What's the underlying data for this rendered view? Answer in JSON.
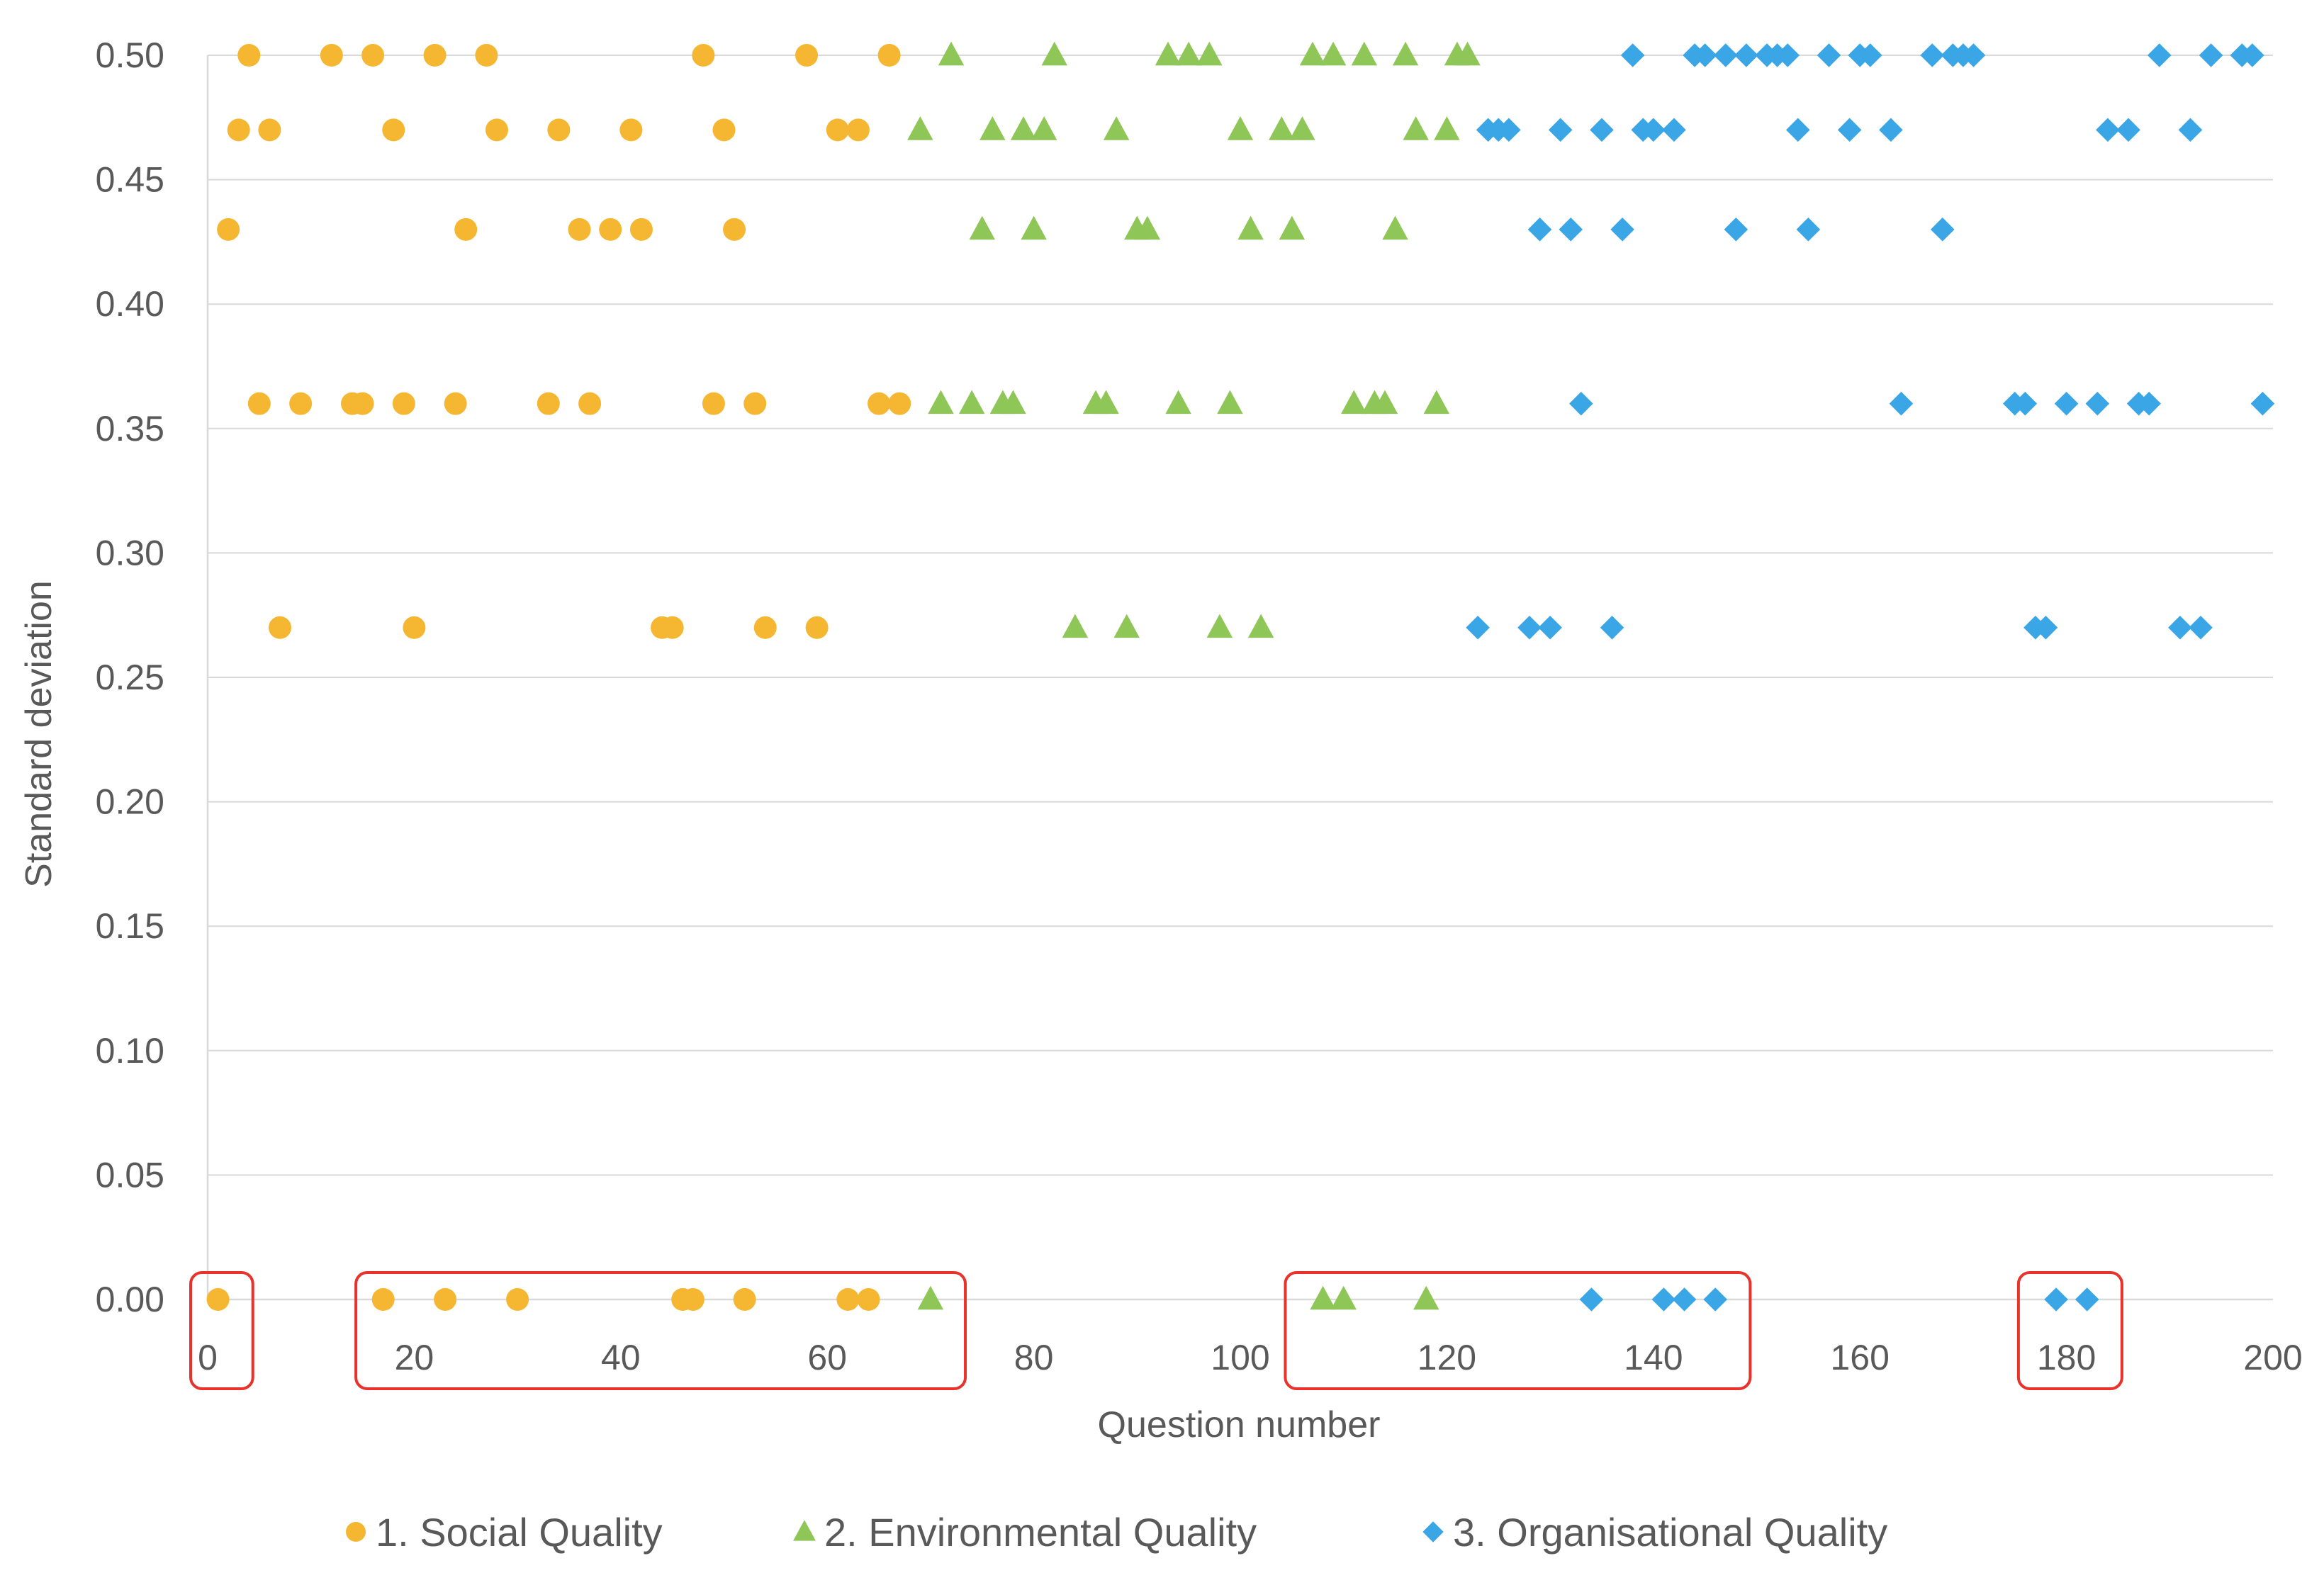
{
  "chart_data": {
    "type": "scatter",
    "title": "",
    "xlabel": "Question number",
    "ylabel": "Standard deviation",
    "xlim": [
      0,
      200
    ],
    "ylim": [
      0,
      0.5
    ],
    "x_ticks": [
      0,
      20,
      40,
      60,
      80,
      100,
      120,
      140,
      160,
      180,
      200
    ],
    "y_ticks": [
      "0.00",
      "0.05",
      "0.10",
      "0.15",
      "0.20",
      "0.25",
      "0.30",
      "0.35",
      "0.40",
      "0.45",
      "0.50"
    ],
    "grid": true,
    "legend_position": "bottom",
    "series": [
      {
        "name": "1. Social Quality",
        "marker": "circle",
        "color": "#f5b731",
        "points": [
          [
            1,
            0
          ],
          [
            2,
            0.43
          ],
          [
            3,
            0.47
          ],
          [
            4,
            0.5
          ],
          [
            5,
            0.36
          ],
          [
            6,
            0.47
          ],
          [
            7,
            0.27
          ],
          [
            9,
            0.36
          ],
          [
            12,
            0.5
          ],
          [
            14,
            0.36
          ],
          [
            15,
            0.36
          ],
          [
            16,
            0.5
          ],
          [
            17,
            0
          ],
          [
            18,
            0.47
          ],
          [
            19,
            0.36
          ],
          [
            20,
            0.27
          ],
          [
            22,
            0.5
          ],
          [
            23,
            0
          ],
          [
            24,
            0.36
          ],
          [
            25,
            0.43
          ],
          [
            27,
            0.5
          ],
          [
            28,
            0.47
          ],
          [
            30,
            0
          ],
          [
            33,
            0.36
          ],
          [
            34,
            0.47
          ],
          [
            36,
            0.43
          ],
          [
            37,
            0.36
          ],
          [
            39,
            0.43
          ],
          [
            41,
            0.47
          ],
          [
            42,
            0.43
          ],
          [
            44,
            0.27
          ],
          [
            45,
            0.27
          ],
          [
            46,
            0
          ],
          [
            47,
            0
          ],
          [
            48,
            0.5
          ],
          [
            49,
            0.36
          ],
          [
            50,
            0.47
          ],
          [
            51,
            0.43
          ],
          [
            52,
            0
          ],
          [
            53,
            0.36
          ],
          [
            54,
            0.27
          ],
          [
            58,
            0.5
          ],
          [
            59,
            0.27
          ],
          [
            61,
            0.47
          ],
          [
            62,
            0
          ],
          [
            63,
            0.47
          ],
          [
            64,
            0
          ],
          [
            65,
            0.36
          ],
          [
            66,
            0.5
          ],
          [
            67,
            0.36
          ]
        ]
      },
      {
        "name": "2. Environmental Quality",
        "marker": "triangle",
        "color": "#8fc658",
        "points": [
          [
            69,
            0.47
          ],
          [
            70,
            0
          ],
          [
            71,
            0.36
          ],
          [
            72,
            0.5
          ],
          [
            74,
            0.36
          ],
          [
            75,
            0.43
          ],
          [
            76,
            0.47
          ],
          [
            77,
            0.36
          ],
          [
            78,
            0.36
          ],
          [
            79,
            0.47
          ],
          [
            80,
            0.43
          ],
          [
            81,
            0.47
          ],
          [
            82,
            0.5
          ],
          [
            84,
            0.27
          ],
          [
            86,
            0.36
          ],
          [
            87,
            0.36
          ],
          [
            88,
            0.47
          ],
          [
            89,
            0.27
          ],
          [
            90,
            0.43
          ],
          [
            91,
            0.43
          ],
          [
            93,
            0.5
          ],
          [
            94,
            0.36
          ],
          [
            95,
            0.5
          ],
          [
            97,
            0.5
          ],
          [
            98,
            0.27
          ],
          [
            99,
            0.36
          ],
          [
            100,
            0.47
          ],
          [
            101,
            0.43
          ],
          [
            102,
            0.27
          ],
          [
            104,
            0.47
          ],
          [
            105,
            0.43
          ],
          [
            106,
            0.47
          ],
          [
            107,
            0.5
          ],
          [
            108,
            0
          ],
          [
            109,
            0.5
          ],
          [
            110,
            0
          ],
          [
            111,
            0.36
          ],
          [
            112,
            0.5
          ],
          [
            113,
            0.36
          ],
          [
            114,
            0.36
          ],
          [
            115,
            0.43
          ],
          [
            116,
            0.5
          ],
          [
            117,
            0.47
          ],
          [
            118,
            0
          ],
          [
            119,
            0.36
          ],
          [
            120,
            0.47
          ],
          [
            121,
            0.5
          ],
          [
            122,
            0.5
          ]
        ]
      },
      {
        "name": "3. Organisational Quality",
        "marker": "diamond",
        "color": "#3ba6e6",
        "points": [
          [
            123,
            0.27
          ],
          [
            124,
            0.47
          ],
          [
            125,
            0.47
          ],
          [
            126,
            0.47
          ],
          [
            128,
            0.27
          ],
          [
            129,
            0.43
          ],
          [
            130,
            0.27
          ],
          [
            131,
            0.47
          ],
          [
            132,
            0.43
          ],
          [
            133,
            0.36
          ],
          [
            134,
            0
          ],
          [
            135,
            0.47
          ],
          [
            136,
            0.27
          ],
          [
            137,
            0.43
          ],
          [
            138,
            0.5
          ],
          [
            139,
            0.47
          ],
          [
            140,
            0.47
          ],
          [
            141,
            0
          ],
          [
            142,
            0.47
          ],
          [
            143,
            0
          ],
          [
            144,
            0.5
          ],
          [
            145,
            0.5
          ],
          [
            146,
            0
          ],
          [
            147,
            0.5
          ],
          [
            148,
            0.43
          ],
          [
            149,
            0.5
          ],
          [
            151,
            0.5
          ],
          [
            152,
            0.5
          ],
          [
            153,
            0.5
          ],
          [
            154,
            0.47
          ],
          [
            155,
            0.43
          ],
          [
            157,
            0.5
          ],
          [
            159,
            0.47
          ],
          [
            160,
            0.5
          ],
          [
            161,
            0.5
          ],
          [
            163,
            0.47
          ],
          [
            164,
            0.36
          ],
          [
            167,
            0.5
          ],
          [
            168,
            0.43
          ],
          [
            169,
            0.5
          ],
          [
            170,
            0.5
          ],
          [
            171,
            0.5
          ],
          [
            175,
            0.36
          ],
          [
            176,
            0.36
          ],
          [
            177,
            0.27
          ],
          [
            178,
            0.27
          ],
          [
            179,
            0
          ],
          [
            180,
            0.36
          ],
          [
            182,
            0
          ],
          [
            183,
            0.36
          ],
          [
            184,
            0.47
          ],
          [
            186,
            0.47
          ],
          [
            187,
            0.36
          ],
          [
            188,
            0.36
          ],
          [
            189,
            0.5
          ],
          [
            191,
            0.27
          ],
          [
            192,
            0.47
          ],
          [
            193,
            0.27
          ],
          [
            194,
            0.5
          ],
          [
            197,
            0.5
          ],
          [
            198,
            0.5
          ],
          [
            199,
            0.36
          ]
        ]
      }
    ],
    "highlight_regions": [
      {
        "x_from": 0,
        "x_to": 3
      },
      {
        "x_from": 16,
        "x_to": 72
      },
      {
        "x_from": 106,
        "x_to": 148
      },
      {
        "x_from": 177,
        "x_to": 184
      }
    ]
  }
}
